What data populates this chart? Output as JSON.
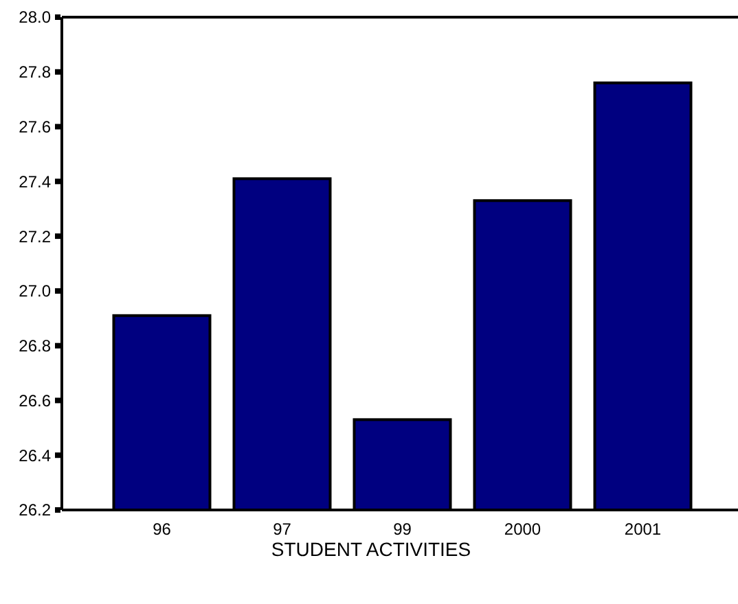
{
  "chart_data": {
    "type": "bar",
    "xlabel": "STUDENT ACTIVITIES",
    "categories": [
      "96",
      "97",
      "99",
      "2000",
      "2001"
    ],
    "values": [
      26.91,
      27.41,
      26.53,
      27.33,
      27.76
    ],
    "color": "#000080",
    "ylim": [
      26.2,
      28.0
    ],
    "yticks": [
      {
        "value": 26.2,
        "label": "26.2"
      },
      {
        "value": 26.4,
        "label": "26.4"
      },
      {
        "value": 26.6,
        "label": "26.6"
      },
      {
        "value": 26.8,
        "label": "26.8"
      },
      {
        "value": 27.0,
        "label": "27.0"
      },
      {
        "value": 27.2,
        "label": "27.2"
      },
      {
        "value": 27.4,
        "label": "27.4"
      },
      {
        "value": 27.6,
        "label": "27.6"
      },
      {
        "value": 27.8,
        "label": "27.8"
      },
      {
        "value": 28.0,
        "label": "28.0"
      }
    ]
  }
}
